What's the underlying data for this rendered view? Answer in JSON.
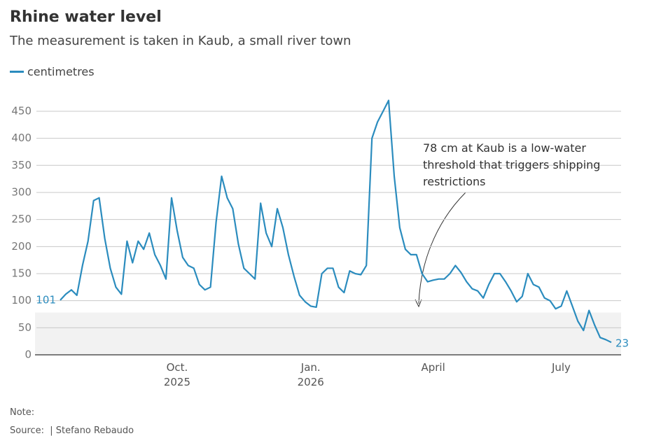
{
  "chart_data": {
    "type": "line",
    "title": "Rhine water level",
    "subtitle": "The measurement is taken in Kaub, a small river town",
    "series": [
      {
        "name": "centimetres",
        "color": "#2b8cbe",
        "values": [
          101,
          112,
          120,
          110,
          165,
          210,
          285,
          290,
          215,
          160,
          125,
          112,
          210,
          170,
          210,
          195,
          225,
          185,
          165,
          140,
          290,
          230,
          180,
          165,
          160,
          130,
          120,
          125,
          245,
          330,
          290,
          270,
          205,
          160,
          150,
          140,
          280,
          225,
          200,
          270,
          235,
          185,
          145,
          110,
          98,
          90,
          88,
          150,
          160,
          160,
          125,
          115,
          155,
          150,
          148,
          165,
          400,
          430,
          450,
          470,
          330,
          235,
          195,
          185,
          185,
          150,
          135,
          138,
          140,
          140,
          150,
          165,
          152,
          135,
          122,
          118,
          105,
          130,
          150,
          150,
          135,
          118,
          98,
          108,
          150,
          130,
          125,
          105,
          100,
          85,
          90,
          118,
          90,
          62,
          45,
          82,
          55,
          32,
          28,
          23
        ]
      }
    ],
    "categories": [
      null,
      null,
      null,
      null,
      null,
      null,
      null,
      null,
      null,
      null,
      null,
      null,
      null,
      null,
      null,
      null,
      null,
      null,
      null,
      null,
      null,
      "Oct.\n2025",
      null,
      null,
      null,
      null,
      null,
      null,
      null,
      null,
      null,
      null,
      null,
      null,
      null,
      null,
      null,
      null,
      null,
      null,
      null,
      null,
      null,
      null,
      null,
      "Jan.\n2026",
      null,
      null,
      null,
      null,
      null,
      null,
      null,
      null,
      null,
      null,
      null,
      null,
      null,
      null,
      null,
      null,
      null,
      null,
      null,
      null,
      null,
      "April",
      null,
      null,
      null,
      null,
      null,
      null,
      null,
      null,
      null,
      null,
      null,
      null,
      null,
      null,
      null,
      null,
      null,
      null,
      null,
      null,
      null,
      null,
      "July",
      null,
      null,
      null,
      null,
      null,
      null,
      null,
      null,
      null
    ],
    "ylim": [
      0,
      500
    ],
    "yticks": [
      0,
      50,
      100,
      150,
      200,
      250,
      300,
      350,
      400,
      450
    ],
    "grid": true,
    "threshold": 78,
    "annotation": "78 cm at Kaub is a low-water threshold that triggers shipping\nrestrictions",
    "note": "Note:",
    "source": "Source:  | Stefano Rebaudo"
  }
}
